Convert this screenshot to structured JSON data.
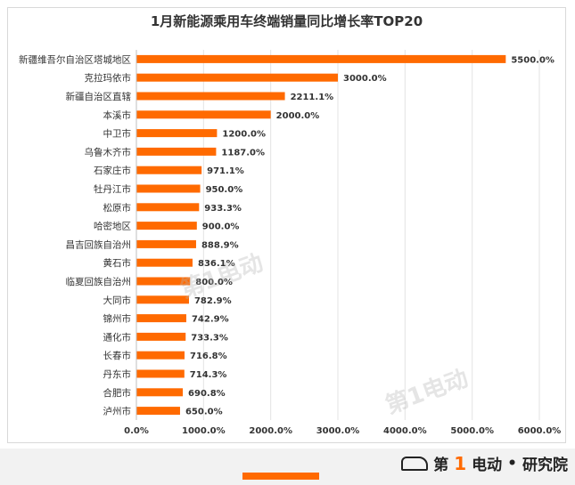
{
  "chart_data": {
    "type": "bar",
    "orientation": "horizontal",
    "title": "1月新能源乘用车终端销量同比增长率TOP20",
    "categories": [
      "新疆维吾尔自治区塔城地区",
      "克拉玛依市",
      "新疆自治区直辖",
      "本溪市",
      "中卫市",
      "乌鲁木齐市",
      "石家庄市",
      "牡丹江市",
      "松原市",
      "哈密地区",
      "昌吉回族自治州",
      "黄石市",
      "临夏回族自治州",
      "大同市",
      "锦州市",
      "通化市",
      "长春市",
      "丹东市",
      "合肥市",
      "泸州市"
    ],
    "values": [
      5500.0,
      3000.0,
      2211.1,
      2000.0,
      1200.0,
      1187.0,
      971.1,
      950.0,
      933.3,
      900.0,
      888.9,
      836.1,
      800.0,
      782.9,
      742.9,
      733.3,
      716.8,
      714.3,
      690.8,
      650.0
    ],
    "value_labels": [
      "5500.0%",
      "3000.0%",
      "2211.1%",
      "2000.0%",
      "1200.0%",
      "1187.0%",
      "971.1%",
      "950.0%",
      "933.3%",
      "900.0%",
      "888.9%",
      "836.1%",
      "800.0%",
      "782.9%",
      "742.9%",
      "733.3%",
      "716.8%",
      "714.3%",
      "690.8%",
      "650.0%"
    ],
    "xlim": [
      0,
      6000
    ],
    "x_ticks": [
      0,
      1000,
      2000,
      3000,
      4000,
      5000,
      6000
    ],
    "x_tick_labels": [
      "0.0%",
      "1000.0%",
      "2000.0%",
      "3000.0%",
      "4000.0%",
      "5000.0%",
      "6000.0%"
    ],
    "grid": "vertical",
    "bar_color": "#ff6a00",
    "xlabel": "",
    "ylabel": ""
  },
  "brand": {
    "prefix": "第",
    "one": "1",
    "suffix": "电动",
    "divider": "•",
    "tail": "研究院"
  },
  "watermark_text": "第1电动"
}
